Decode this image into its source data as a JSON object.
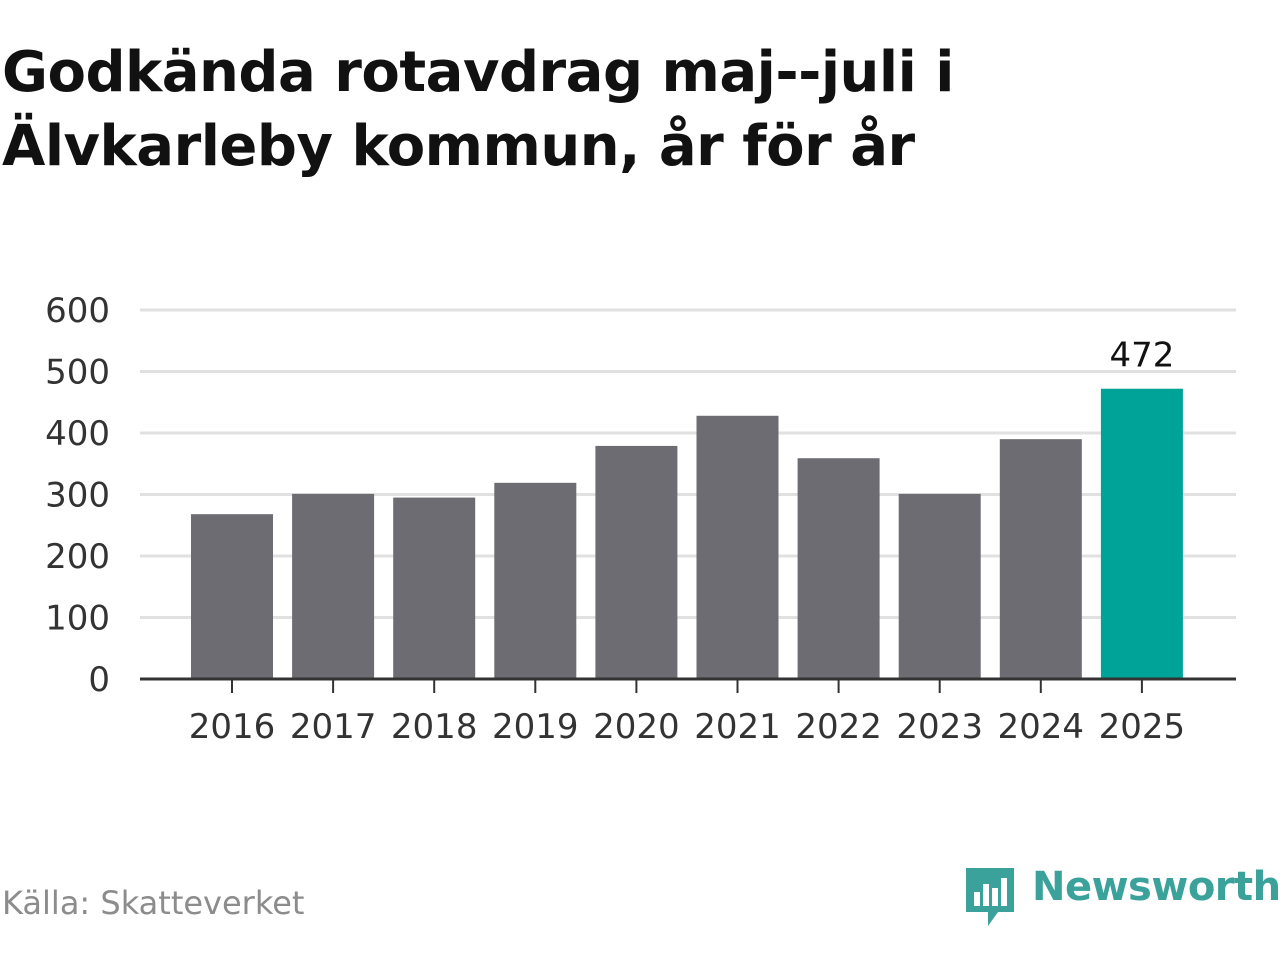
{
  "title": "Godkända rotavdrag maj--juli i Älvkarleby kommun, år för år",
  "source": "Källa: Skatteverket",
  "brand": {
    "name": "Newsworthy",
    "icon": "newsworthy-logo-icon",
    "color": "#3aa29a"
  },
  "chart_data": {
    "type": "bar",
    "title": "Godkända rotavdrag maj--juli i Älvkarleby kommun, år för år",
    "categories": [
      "2016",
      "2017",
      "2018",
      "2019",
      "2020",
      "2021",
      "2022",
      "2023",
      "2024",
      "2025"
    ],
    "values": [
      268,
      301,
      295,
      319,
      379,
      428,
      359,
      301,
      390,
      472
    ],
    "highlight_index": 9,
    "data_labels": [
      {
        "index": 9,
        "text": "472"
      }
    ],
    "ylim": [
      0,
      600
    ],
    "yticks": [
      "0",
      "100",
      "200",
      "300",
      "400",
      "500",
      "600"
    ],
    "grid": true,
    "legend": "none",
    "xlabel": "",
    "ylabel": "",
    "colors": {
      "bar": "#6d6c72",
      "highlight": "#00a398",
      "grid": "#e1e1e1",
      "axis": "#333333"
    }
  }
}
